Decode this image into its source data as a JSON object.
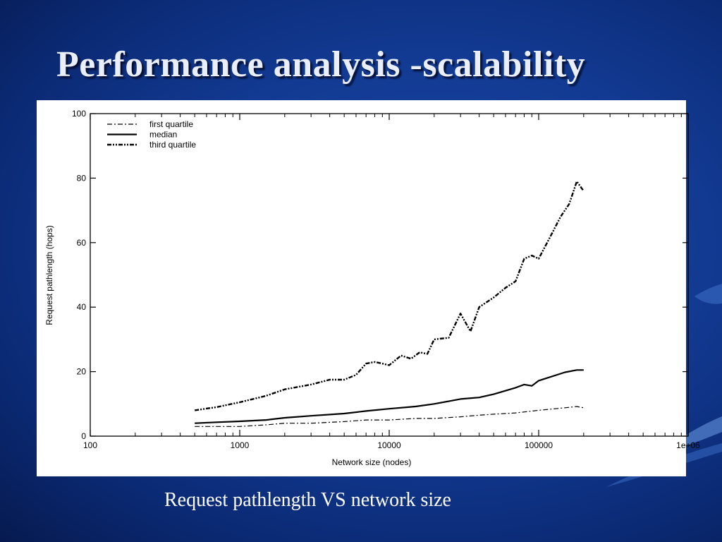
{
  "slide": {
    "title": "Performance analysis -scalability",
    "caption": "Request pathlength VS network size"
  },
  "colors": {
    "background": "#123a92",
    "title": "#e9eef8",
    "caption": "#ffffff",
    "panel": "#ffffff",
    "ink": "#000000"
  },
  "chart_data": {
    "type": "line",
    "title": "",
    "xlabel": "Network size (nodes)",
    "ylabel": "Request pathlength (hops)",
    "xscale": "log",
    "xlim": [
      100,
      1000000
    ],
    "ylim": [
      0,
      100
    ],
    "xticks": [
      "100",
      "1000",
      "10000",
      "100000",
      "1e+06"
    ],
    "yticks": [
      "0",
      "20",
      "40",
      "60",
      "80",
      "100"
    ],
    "grid": false,
    "legend_position": "top-left",
    "series": [
      {
        "name": "first quartile",
        "style": "dash-dot",
        "x": [
          500,
          700,
          1000,
          1500,
          2000,
          3000,
          5000,
          7000,
          10000,
          15000,
          20000,
          30000,
          40000,
          50000,
          70000,
          100000,
          150000,
          180000,
          200000
        ],
        "y": [
          3,
          3,
          3,
          3.5,
          4,
          4,
          4.5,
          5,
          5,
          5.5,
          5.5,
          6,
          6.5,
          6.8,
          7.2,
          8,
          8.8,
          9.2,
          8.8
        ]
      },
      {
        "name": "median",
        "style": "solid",
        "x": [
          500,
          700,
          1000,
          1500,
          2000,
          3000,
          5000,
          7000,
          10000,
          15000,
          20000,
          25000,
          30000,
          40000,
          50000,
          70000,
          80000,
          90000,
          100000,
          150000,
          180000,
          200000
        ],
        "y": [
          4,
          4.3,
          4.6,
          5,
          5.7,
          6.3,
          7,
          7.8,
          8.5,
          9.2,
          10,
          10.8,
          11.5,
          12,
          13,
          15,
          16,
          15.6,
          17.2,
          19.8,
          20.5,
          20.5
        ]
      },
      {
        "name": "third quartile",
        "style": "dash-dot-dot",
        "x": [
          500,
          700,
          1000,
          1500,
          2000,
          3000,
          4000,
          5000,
          6000,
          7000,
          8000,
          9000,
          10000,
          12000,
          14000,
          16000,
          18000,
          20000,
          25000,
          30000,
          35000,
          40000,
          50000,
          60000,
          70000,
          80000,
          90000,
          100000,
          120000,
          140000,
          160000,
          180000,
          200000
        ],
        "y": [
          8,
          9,
          10.5,
          12.5,
          14.5,
          16,
          17.5,
          17.5,
          19,
          22.5,
          23,
          22.5,
          22,
          25,
          24,
          26,
          25.5,
          30,
          30.5,
          38,
          32.5,
          40,
          43,
          46,
          48,
          55,
          56,
          55,
          62,
          68,
          72,
          79,
          76
        ]
      }
    ]
  }
}
